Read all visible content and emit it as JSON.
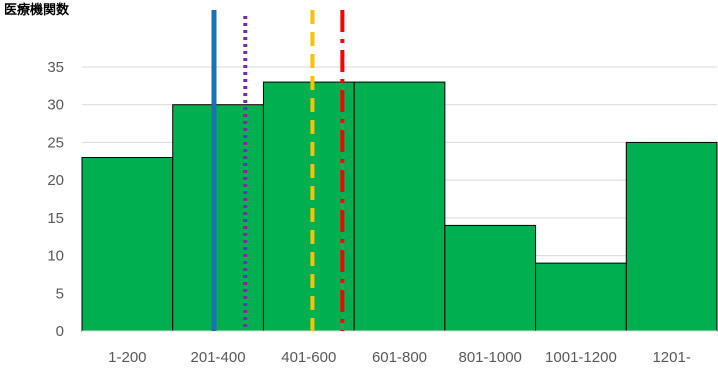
{
  "chart_data": {
    "type": "bar",
    "ylabel": "医療機関数",
    "categories": [
      "1-200",
      "201-400",
      "401-600",
      "601-800",
      "801-1000",
      "1001-1200",
      "1201-"
    ],
    "series": [
      {
        "values": [
          23,
          30,
          33,
          33,
          14,
          9,
          25
        ],
        "color": "#00b050"
      }
    ],
    "ylim": [
      0,
      35
    ],
    "yticks": [
      0,
      5,
      10,
      15,
      20,
      25,
      30,
      35
    ],
    "grid": true,
    "bar_gap": 0,
    "reference_lines": [
      {
        "x": 1.455,
        "style": "solid",
        "color": "#1f6fb5"
      },
      {
        "x": 1.8,
        "style": "dotted",
        "color": "#7030a0"
      },
      {
        "x": 2.54,
        "style": "dashed",
        "color": "#ffc000"
      },
      {
        "x": 2.87,
        "style": "dash-dot",
        "color": "#ff0000"
      }
    ]
  }
}
